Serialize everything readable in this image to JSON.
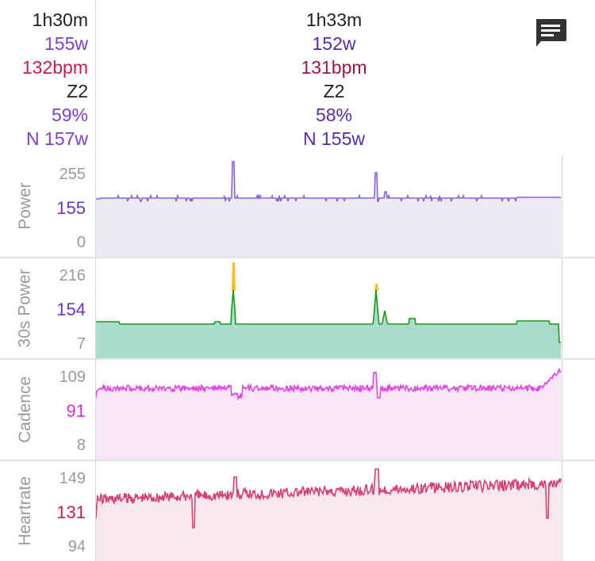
{
  "summary": {
    "left": {
      "duration": "1h30m",
      "avg_power": "155w",
      "avg_hr": "132bpm",
      "zone": "Z2",
      "pct": "59%",
      "np": "N 157w"
    },
    "mid": {
      "duration": "1h33m",
      "avg_power": "152w",
      "avg_hr": "131bpm",
      "zone": "Z2",
      "pct": "58%",
      "np": "N 155w"
    }
  },
  "comment_icon": "comment-icon",
  "charts": {
    "power": {
      "label": "Power",
      "ticks": {
        "top": "255",
        "mid": "155",
        "bottom": "0"
      },
      "mid_color": "#6a35c8",
      "line_color": "#8c63d6",
      "fill_color": "#eeeaf4"
    },
    "power30": {
      "label": "30s Power",
      "ticks": {
        "top": "216",
        "mid": "154",
        "bottom": "7"
      },
      "mid_color": "#6a35c8",
      "line_color": "#1a9a1a",
      "fill_color": "#aadccb",
      "peak_color": "#f2c21b"
    },
    "cadence": {
      "label": "Cadence",
      "ticks": {
        "top": "109",
        "mid": "91",
        "bottom": "8"
      },
      "mid_color": "#e02ad8",
      "line_color": "#e048e6",
      "fill_color": "#f7e6f7"
    },
    "heartrate": {
      "label": "Heartrate",
      "ticks": {
        "top": "149",
        "mid": "131",
        "bottom": "94"
      },
      "mid_color": "#cc1a4d",
      "line_color": "#d84272",
      "fill_color": "#f7e8ec"
    }
  }
}
